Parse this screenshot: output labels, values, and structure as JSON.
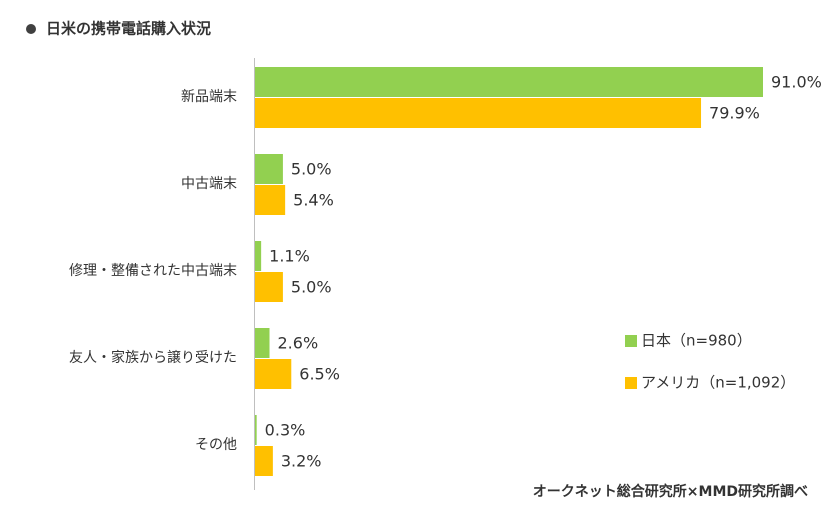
{
  "chart_data": {
    "type": "bar",
    "orientation": "horizontal",
    "title": "日米の携帯電話購入状況",
    "categories": [
      "新品端末",
      "中古端末",
      "修理・整備された中古端末",
      "友人・家族から譲り受けた",
      "その他"
    ],
    "series": [
      {
        "name": "日本（n=980）",
        "color": "#92d050",
        "values": [
          91.0,
          5.0,
          1.1,
          2.6,
          0.3
        ],
        "value_labels": [
          "91.0%",
          "5.0%",
          "1.1%",
          "2.6%",
          "0.3%"
        ]
      },
      {
        "name": "アメリカ（n=1,092）",
        "color": "#ffc000",
        "values": [
          79.9,
          5.4,
          5.0,
          6.5,
          3.2
        ],
        "value_labels": [
          "79.9%",
          "5.4%",
          "5.0%",
          "6.5%",
          "3.2%"
        ]
      }
    ],
    "source": "オークネット総合研究所×MMD研究所調べ"
  }
}
